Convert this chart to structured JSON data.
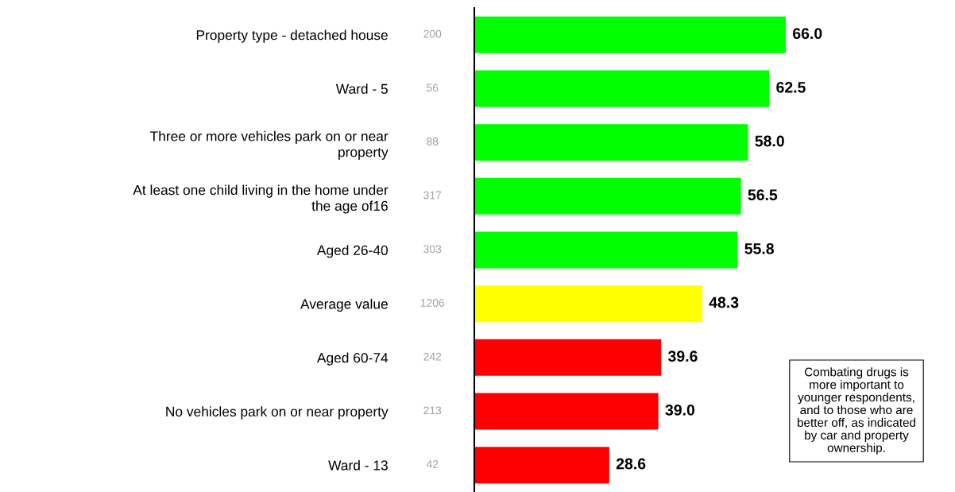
{
  "chart_data": {
    "type": "bar",
    "orientation": "horizontal",
    "categories": [
      "Property type - detached house",
      "Ward - 5",
      "Three or more vehicles park on or near\nproperty",
      "At least one child living in the home under\nthe age of16",
      "Aged 26-40",
      "Average value",
      "Aged 60-74",
      "No vehicles park on or near property",
      "Ward - 13"
    ],
    "y2_categories": [
      "200",
      "56",
      "88",
      "317",
      "303",
      "1206",
      "242",
      "213",
      "42"
    ],
    "values": [
      66.0,
      62.5,
      58.0,
      56.5,
      55.8,
      48.3,
      39.6,
      39.0,
      28.6
    ],
    "colors": [
      "#00ff00",
      "#00ff00",
      "#00ff00",
      "#00ff00",
      "#00ff00",
      "#ffff00",
      "#ff0000",
      "#ff0000",
      "#ff0000"
    ],
    "value_labels": [
      "66.0",
      "62.5",
      "58.0",
      "56.5",
      "55.8",
      "48.3",
      "39.6",
      "39.0",
      "28.6"
    ],
    "grid": false,
    "annotations": [
      "Combating drugs is\nmore important to\nyounger respondents,\nand to those who are\nbetter off, as indicated\nby car and property\nownership."
    ]
  }
}
